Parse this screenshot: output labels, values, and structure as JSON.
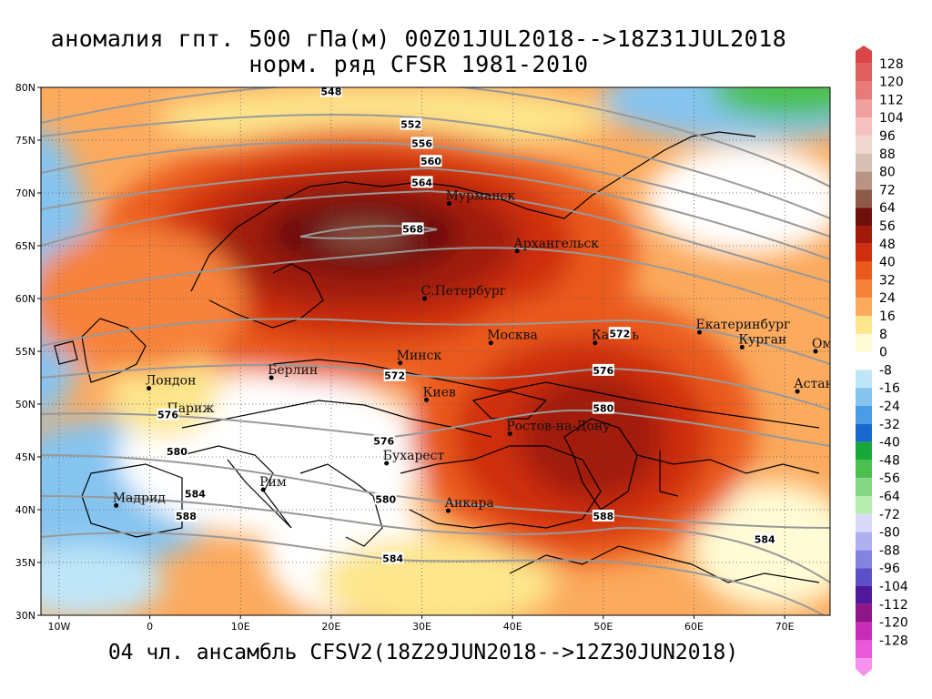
{
  "title_line1": "аномалия гпт. 500 гПа(м) 00Z01JUL2018-->18Z31JUL2018",
  "title_line2": "норм. ряд CFSR 1981-2010",
  "footer": "04 чл. ансамбль CFSV2(18Z29JUN2018-->12Z30JUN2018)",
  "map": {
    "lon_range": [
      -12,
      75
    ],
    "lat_range": [
      30,
      80
    ],
    "lat_ticks": [
      {
        "value": 30,
        "label": "30N"
      },
      {
        "value": 35,
        "label": "35N"
      },
      {
        "value": 40,
        "label": "40N"
      },
      {
        "value": 45,
        "label": "45N"
      },
      {
        "value": 50,
        "label": "50N"
      },
      {
        "value": 55,
        "label": "55N"
      },
      {
        "value": 60,
        "label": "60N"
      },
      {
        "value": 65,
        "label": "65N"
      },
      {
        "value": 70,
        "label": "70N"
      },
      {
        "value": 75,
        "label": "75N"
      },
      {
        "value": 80,
        "label": "80N"
      }
    ],
    "lon_ticks": [
      {
        "value": -10,
        "label": "10W"
      },
      {
        "value": 0,
        "label": "0"
      },
      {
        "value": 10,
        "label": "10E"
      },
      {
        "value": 20,
        "label": "20E"
      },
      {
        "value": 30,
        "label": "30E"
      },
      {
        "value": 40,
        "label": "40E"
      },
      {
        "value": 50,
        "label": "50E"
      },
      {
        "value": 60,
        "label": "60E"
      },
      {
        "value": 70,
        "label": "70E"
      }
    ],
    "cities": [
      {
        "name": "Мурманск",
        "lon": 33,
        "lat": 69
      },
      {
        "name": "Архангельск",
        "lon": 40.5,
        "lat": 64.5
      },
      {
        "name": "С.Петербург",
        "lon": 30.3,
        "lat": 60
      },
      {
        "name": "Москва",
        "lon": 37.6,
        "lat": 55.8
      },
      {
        "name": "Казань",
        "lon": 49.1,
        "lat": 55.8
      },
      {
        "name": "Екатеринбург",
        "lon": 60.6,
        "lat": 56.8
      },
      {
        "name": "Курган",
        "lon": 65.3,
        "lat": 55.4
      },
      {
        "name": "Омск",
        "lon": 73.4,
        "lat": 55
      },
      {
        "name": "Астана",
        "lon": 71.4,
        "lat": 51.2
      },
      {
        "name": "Минск",
        "lon": 27.6,
        "lat": 53.9
      },
      {
        "name": "Киев",
        "lon": 30.5,
        "lat": 50.4
      },
      {
        "name": "Ростов-на-Дону",
        "lon": 39.7,
        "lat": 47.2
      },
      {
        "name": "Берлин",
        "lon": 13.4,
        "lat": 52.5
      },
      {
        "name": "Лондон",
        "lon": -0.1,
        "lat": 51.5
      },
      {
        "name": "Париж",
        "lon": 2.3,
        "lat": 48.9
      },
      {
        "name": "Бухарест",
        "lon": 26.1,
        "lat": 44.4
      },
      {
        "name": "Рим",
        "lon": 12.5,
        "lat": 41.9
      },
      {
        "name": "Мадрид",
        "lon": -3.7,
        "lat": 40.4
      },
      {
        "name": "Анкара",
        "lon": 32.9,
        "lat": 39.9
      }
    ],
    "contour_labels": [
      {
        "text": "548",
        "lon": 20,
        "lat": 79.6
      },
      {
        "text": "552",
        "lon": 28.8,
        "lat": 76.5
      },
      {
        "text": "556",
        "lon": 30,
        "lat": 74.7
      },
      {
        "text": "560",
        "lon": 31,
        "lat": 73
      },
      {
        "text": "564",
        "lon": 30,
        "lat": 71
      },
      {
        "text": "568",
        "lon": 29,
        "lat": 66.6
      },
      {
        "text": "572",
        "lon": 51.8,
        "lat": 56.7
      },
      {
        "text": "572",
        "lon": 27,
        "lat": 52.7
      },
      {
        "text": "576",
        "lon": 50,
        "lat": 53.2
      },
      {
        "text": "576",
        "lon": 2,
        "lat": 49
      },
      {
        "text": "576",
        "lon": 25.8,
        "lat": 46.5
      },
      {
        "text": "580",
        "lon": 50,
        "lat": 49.6
      },
      {
        "text": "580",
        "lon": 3,
        "lat": 45.5
      },
      {
        "text": "580",
        "lon": 26,
        "lat": 41
      },
      {
        "text": "584",
        "lon": 5,
        "lat": 41.5
      },
      {
        "text": "584",
        "lon": 26.8,
        "lat": 35.4
      },
      {
        "text": "584",
        "lon": 67.8,
        "lat": 37.2
      },
      {
        "text": "588",
        "lon": 4,
        "lat": 39.4
      },
      {
        "text": "588",
        "lon": 50,
        "lat": 39.4
      }
    ]
  },
  "legend": {
    "levels": [
      {
        "label": "128",
        "color": "#d94646"
      },
      {
        "label": "120",
        "color": "#e06060"
      },
      {
        "label": "112",
        "color": "#e87a7a"
      },
      {
        "label": "104",
        "color": "#f0a0a0"
      },
      {
        "label": "96",
        "color": "#f6c0c0"
      },
      {
        "label": "88",
        "color": "#f0d8d0"
      },
      {
        "label": "80",
        "color": "#d8c0b4"
      },
      {
        "label": "72",
        "color": "#b89484"
      },
      {
        "label": "64",
        "color": "#8e5a48"
      },
      {
        "label": "56",
        "color": "#6e0f0a"
      },
      {
        "label": "48",
        "color": "#a11a0c"
      },
      {
        "label": "40",
        "color": "#cf2f10"
      },
      {
        "label": "32",
        "color": "#ea5a1c"
      },
      {
        "label": "24",
        "color": "#f6823a"
      },
      {
        "label": "16",
        "color": "#fbaa5e"
      },
      {
        "label": "8",
        "color": "#fde68c"
      },
      {
        "label": "0",
        "color": "#fffbd4"
      },
      {
        "label": "-8",
        "color": "#ffffff"
      },
      {
        "label": "-16",
        "color": "#bfe6f8"
      },
      {
        "label": "-24",
        "color": "#86c4f0"
      },
      {
        "label": "-32",
        "color": "#4a9ce6"
      },
      {
        "label": "-40",
        "color": "#1868d0"
      },
      {
        "label": "-48",
        "color": "#18a83a"
      },
      {
        "label": "-56",
        "color": "#4cc04e"
      },
      {
        "label": "-64",
        "color": "#84d884"
      },
      {
        "label": "-72",
        "color": "#b8ecb0"
      },
      {
        "label": "-80",
        "color": "#d8d8f8"
      },
      {
        "label": "-88",
        "color": "#b0b0f0"
      },
      {
        "label": "-96",
        "color": "#8484e0"
      },
      {
        "label": "-104",
        "color": "#5c50c8"
      },
      {
        "label": "-112",
        "color": "#50189a"
      },
      {
        "label": "-120",
        "color": "#8e1688"
      },
      {
        "label": "-128",
        "color": "#c82cb8"
      },
      {
        "label": "",
        "color": "#e858d8"
      },
      {
        "label": "",
        "color": "#f590ec"
      }
    ]
  }
}
